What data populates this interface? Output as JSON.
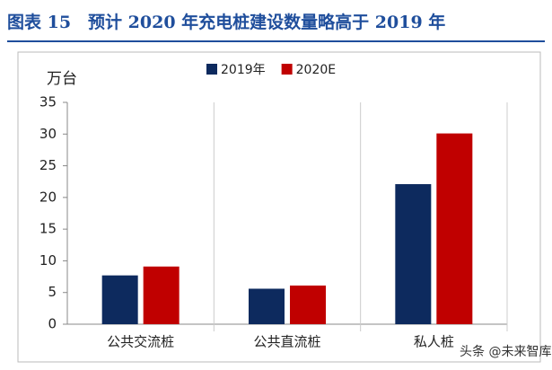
{
  "chart_data": {
    "type": "bar",
    "title": "图表 15　预计 2020 年充电桩建设数量略高于 2019 年",
    "y_label": "万台",
    "categories": [
      "公共交流桩",
      "公共直流桩",
      "私人桩"
    ],
    "series": [
      {
        "name": "2019年",
        "color": "#0d2a5e",
        "values": [
          7.7,
          5.6,
          22.1
        ]
      },
      {
        "name": "2020E",
        "color": "#c00000",
        "values": [
          9.1,
          6.1,
          30.1
        ]
      }
    ],
    "ylim": [
      0,
      35
    ],
    "yticks": [
      0,
      5,
      10,
      15,
      20,
      25,
      30,
      35
    ],
    "legend": "top",
    "watermark": "头条 @未来智库"
  }
}
